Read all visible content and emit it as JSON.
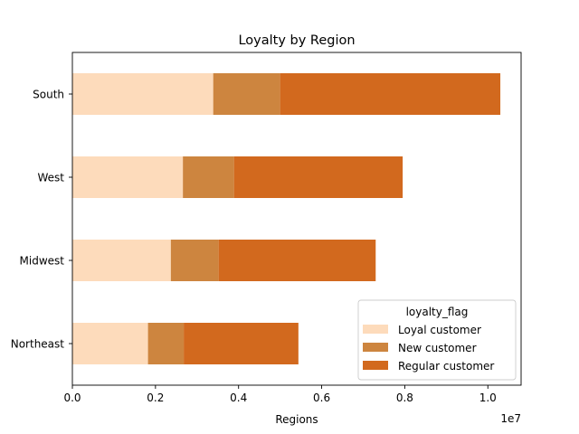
{
  "chart_data": {
    "type": "bar",
    "orientation": "horizontal",
    "stacked": true,
    "title": "Loyalty by Region",
    "xlabel": "Regions",
    "ylabel": "",
    "x_scale_note": "1e7",
    "xlim": [
      0,
      10800000
    ],
    "x_ticks": [
      0,
      2000000,
      4000000,
      6000000,
      8000000,
      10000000
    ],
    "x_tick_labels": [
      "0.0",
      "0.2",
      "0.4",
      "0.6",
      "0.8",
      "1.0"
    ],
    "categories": [
      "Northeast",
      "Midwest",
      "West",
      "South"
    ],
    "series": [
      {
        "name": "Loyal customer",
        "color": "#FDDBBB",
        "values": [
          1820000,
          2370000,
          2660000,
          3390000
        ]
      },
      {
        "name": "New customer",
        "color": "#CD853F",
        "values": [
          860000,
          1150000,
          1230000,
          1610000
        ]
      },
      {
        "name": "Regular customer",
        "color": "#D2691E",
        "values": [
          2760000,
          3780000,
          4060000,
          5300000
        ]
      }
    ],
    "legend": {
      "title": "loyalty_flag",
      "position": "lower-right"
    },
    "grid": false
  }
}
